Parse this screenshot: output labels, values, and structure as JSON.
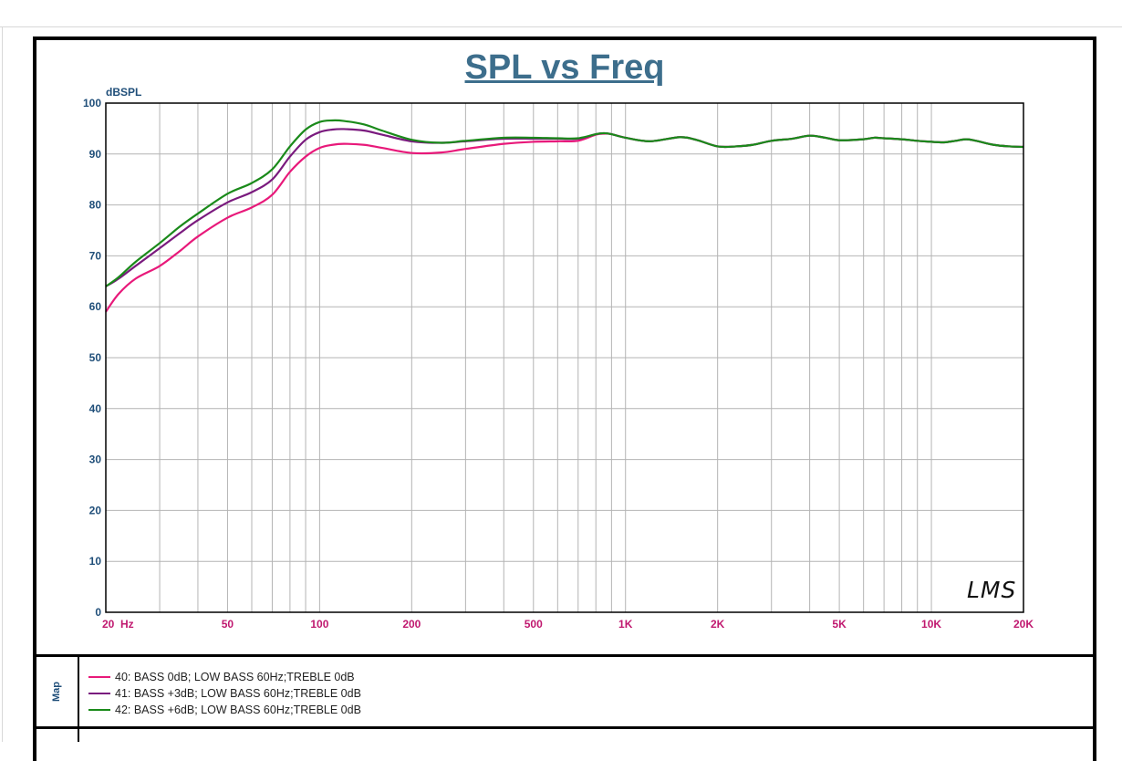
{
  "chart_data": {
    "type": "line",
    "title": "SPL vs Freq",
    "ylabel": "dBSPL",
    "xlabel": "",
    "xscale": "log",
    "xlim": [
      20,
      20000
    ],
    "ylim": [
      0,
      100
    ],
    "grid": true,
    "y_ticks": [
      {
        "value": 0,
        "label": "0"
      },
      {
        "value": 10,
        "label": "10"
      },
      {
        "value": 20,
        "label": "20"
      },
      {
        "value": 30,
        "label": "30"
      },
      {
        "value": 40,
        "label": "40"
      },
      {
        "value": 50,
        "label": "50"
      },
      {
        "value": 60,
        "label": "60"
      },
      {
        "value": 70,
        "label": "70"
      },
      {
        "value": 80,
        "label": "80"
      },
      {
        "value": 90,
        "label": "90"
      },
      {
        "value": 100,
        "label": "100"
      }
    ],
    "x_ticks": [
      {
        "value": 20,
        "label": "20  Hz"
      },
      {
        "value": 50,
        "label": "50"
      },
      {
        "value": 100,
        "label": "100"
      },
      {
        "value": 200,
        "label": "200"
      },
      {
        "value": 500,
        "label": "500"
      },
      {
        "value": 1000,
        "label": "1K"
      },
      {
        "value": 2000,
        "label": "2K"
      },
      {
        "value": 5000,
        "label": "5K"
      },
      {
        "value": 10000,
        "label": "10K"
      },
      {
        "value": 20000,
        "label": "20K"
      }
    ],
    "series": [
      {
        "name": "40: BASS 0dB; LOW BASS 60Hz;TREBLE 0dB",
        "color": "#e8197a",
        "points": [
          [
            20,
            59
          ],
          [
            22,
            62.5
          ],
          [
            25,
            65.5
          ],
          [
            30,
            68
          ],
          [
            35,
            71
          ],
          [
            40,
            73.8
          ],
          [
            50,
            77.5
          ],
          [
            60,
            79.5
          ],
          [
            70,
            82
          ],
          [
            80,
            86.5
          ],
          [
            90,
            89.5
          ],
          [
            100,
            91.2
          ],
          [
            110,
            91.8
          ],
          [
            120,
            92
          ],
          [
            140,
            91.8
          ],
          [
            160,
            91.2
          ],
          [
            200,
            90.2
          ],
          [
            250,
            90.3
          ],
          [
            300,
            91
          ],
          [
            400,
            92
          ],
          [
            500,
            92.4
          ],
          [
            600,
            92.5
          ],
          [
            700,
            92.6
          ],
          [
            800,
            93.8
          ],
          [
            850,
            94
          ],
          [
            900,
            93.9
          ],
          [
            1000,
            93.2
          ],
          [
            1200,
            92.5
          ],
          [
            1500,
            93.3
          ],
          [
            1700,
            92.8
          ],
          [
            2000,
            91.5
          ],
          [
            2300,
            91.5
          ],
          [
            2600,
            91.8
          ],
          [
            3000,
            92.6
          ],
          [
            3500,
            93
          ],
          [
            4000,
            93.6
          ],
          [
            4500,
            93.2
          ],
          [
            5000,
            92.7
          ],
          [
            6000,
            92.9
          ],
          [
            6500,
            93.2
          ],
          [
            7000,
            93.1
          ],
          [
            8000,
            92.9
          ],
          [
            9000,
            92.6
          ],
          [
            10000,
            92.4
          ],
          [
            11000,
            92.3
          ],
          [
            12000,
            92.6
          ],
          [
            13000,
            92.9
          ],
          [
            14000,
            92.6
          ],
          [
            16000,
            91.8
          ],
          [
            18000,
            91.5
          ],
          [
            20000,
            91.4
          ]
        ]
      },
      {
        "name": "41: BASS +3dB; LOW BASS 60Hz;TREBLE 0dB",
        "color": "#7a1a7e",
        "points": [
          [
            20,
            64
          ],
          [
            22,
            65.5
          ],
          [
            25,
            68
          ],
          [
            30,
            71.5
          ],
          [
            35,
            74.5
          ],
          [
            40,
            77
          ],
          [
            50,
            80.5
          ],
          [
            60,
            82.5
          ],
          [
            70,
            85
          ],
          [
            80,
            89.5
          ],
          [
            90,
            92.8
          ],
          [
            100,
            94.3
          ],
          [
            110,
            94.8
          ],
          [
            120,
            94.9
          ],
          [
            140,
            94.6
          ],
          [
            160,
            93.8
          ],
          [
            200,
            92.5
          ],
          [
            250,
            92.2
          ],
          [
            300,
            92.5
          ],
          [
            400,
            93
          ],
          [
            500,
            93
          ],
          [
            600,
            93
          ],
          [
            700,
            93
          ],
          [
            800,
            93.9
          ],
          [
            850,
            94.1
          ],
          [
            900,
            93.9
          ],
          [
            1000,
            93.2
          ],
          [
            1200,
            92.5
          ],
          [
            1500,
            93.3
          ],
          [
            1700,
            92.8
          ],
          [
            2000,
            91.5
          ],
          [
            2300,
            91.5
          ],
          [
            2600,
            91.8
          ],
          [
            3000,
            92.6
          ],
          [
            3500,
            93
          ],
          [
            4000,
            93.6
          ],
          [
            4500,
            93.2
          ],
          [
            5000,
            92.7
          ],
          [
            6000,
            92.9
          ],
          [
            6500,
            93.2
          ],
          [
            7000,
            93.1
          ],
          [
            8000,
            92.9
          ],
          [
            9000,
            92.6
          ],
          [
            10000,
            92.4
          ],
          [
            11000,
            92.3
          ],
          [
            12000,
            92.6
          ],
          [
            13000,
            92.9
          ],
          [
            14000,
            92.6
          ],
          [
            16000,
            91.8
          ],
          [
            18000,
            91.5
          ],
          [
            20000,
            91.4
          ]
        ]
      },
      {
        "name": "42: BASS +6dB; LOW BASS 60Hz;TREBLE 0dB",
        "color": "#1a8a1a",
        "points": [
          [
            20,
            64
          ],
          [
            22,
            65.8
          ],
          [
            25,
            68.8
          ],
          [
            30,
            72.5
          ],
          [
            35,
            75.8
          ],
          [
            40,
            78.3
          ],
          [
            50,
            82.2
          ],
          [
            60,
            84.3
          ],
          [
            70,
            87
          ],
          [
            80,
            91.5
          ],
          [
            90,
            94.8
          ],
          [
            100,
            96.3
          ],
          [
            110,
            96.6
          ],
          [
            120,
            96.5
          ],
          [
            140,
            95.8
          ],
          [
            160,
            94.6
          ],
          [
            200,
            92.8
          ],
          [
            250,
            92.2
          ],
          [
            300,
            92.6
          ],
          [
            400,
            93.2
          ],
          [
            500,
            93.2
          ],
          [
            600,
            93.1
          ],
          [
            700,
            93.1
          ],
          [
            800,
            93.9
          ],
          [
            850,
            94.1
          ],
          [
            900,
            93.9
          ],
          [
            1000,
            93.2
          ],
          [
            1200,
            92.5
          ],
          [
            1500,
            93.3
          ],
          [
            1700,
            92.8
          ],
          [
            2000,
            91.5
          ],
          [
            2300,
            91.5
          ],
          [
            2600,
            91.8
          ],
          [
            3000,
            92.6
          ],
          [
            3500,
            93
          ],
          [
            4000,
            93.6
          ],
          [
            4500,
            93.2
          ],
          [
            5000,
            92.7
          ],
          [
            6000,
            92.9
          ],
          [
            6500,
            93.2
          ],
          [
            7000,
            93.1
          ],
          [
            8000,
            92.9
          ],
          [
            9000,
            92.6
          ],
          [
            10000,
            92.4
          ],
          [
            11000,
            92.3
          ],
          [
            12000,
            92.6
          ],
          [
            13000,
            92.9
          ],
          [
            14000,
            92.6
          ],
          [
            16000,
            91.8
          ],
          [
            18000,
            91.5
          ],
          [
            20000,
            91.4
          ]
        ]
      }
    ]
  },
  "signature": "LMS",
  "map_label": "Map"
}
